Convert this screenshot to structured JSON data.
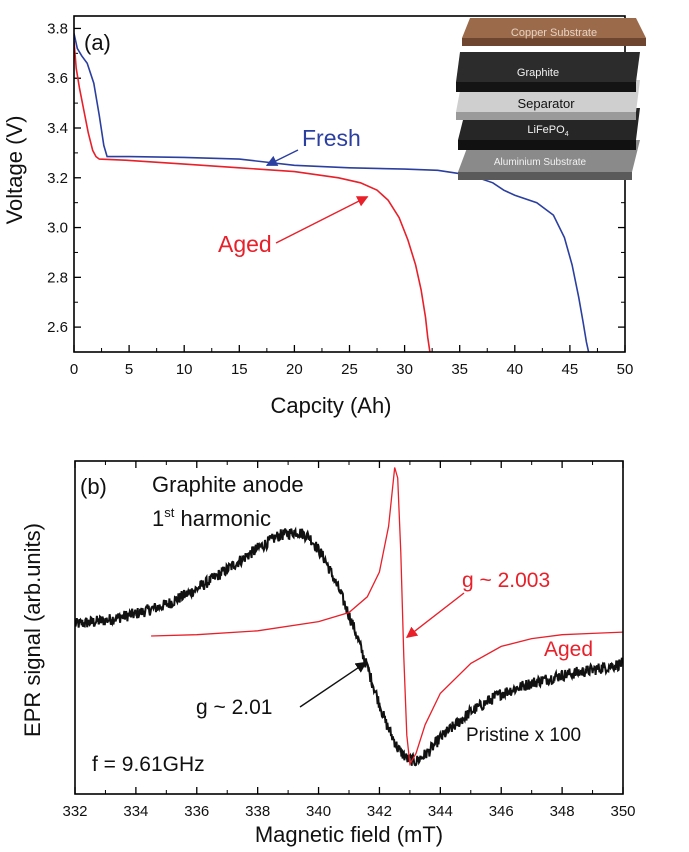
{
  "chart_data": [
    {
      "type": "line",
      "panel_label": "(a)",
      "xlabel": "Capcity (Ah)",
      "ylabel": "Voltage (V)",
      "xlim": [
        0,
        50
      ],
      "ylim": [
        2.5,
        3.85
      ],
      "xticks": [
        0,
        5,
        10,
        15,
        20,
        25,
        30,
        35,
        40,
        45,
        50
      ],
      "yticks": [
        2.6,
        2.8,
        3.0,
        3.2,
        3.4,
        3.6,
        3.8
      ],
      "series": [
        {
          "name": "Fresh",
          "color": "#2b3fa0",
          "x": [
            0,
            0.3,
            0.7,
            1.2,
            1.8,
            2.3,
            2.7,
            3.0,
            5,
            10,
            15,
            20,
            25,
            30,
            33,
            36,
            38,
            39,
            40,
            42,
            43.5,
            44.5,
            45.2,
            45.8,
            46.2,
            46.5,
            46.7
          ],
          "y": [
            3.78,
            3.72,
            3.69,
            3.66,
            3.58,
            3.45,
            3.33,
            3.285,
            3.285,
            3.282,
            3.275,
            3.25,
            3.24,
            3.235,
            3.23,
            3.21,
            3.18,
            3.15,
            3.13,
            3.1,
            3.05,
            2.96,
            2.85,
            2.72,
            2.62,
            2.54,
            2.5
          ]
        },
        {
          "name": "Aged",
          "color": "#e8202a",
          "x": [
            0,
            0.2,
            0.5,
            0.9,
            1.3,
            1.7,
            2.0,
            2.3,
            5,
            10,
            15,
            20,
            24,
            26,
            27.5,
            28.5,
            29.5,
            30.3,
            31,
            31.5,
            31.9,
            32.1,
            32.3
          ],
          "y": [
            3.75,
            3.64,
            3.56,
            3.47,
            3.38,
            3.31,
            3.285,
            3.275,
            3.27,
            3.255,
            3.24,
            3.225,
            3.2,
            3.18,
            3.15,
            3.11,
            3.04,
            2.95,
            2.85,
            2.75,
            2.64,
            2.56,
            2.5
          ]
        }
      ],
      "annotations": [
        {
          "text": "Fresh",
          "color": "#2b3fa0",
          "arrow_to": [
            17.5,
            3.25
          ]
        },
        {
          "text": "Aged",
          "color": "#e8202a",
          "arrow_to": [
            23,
            3.18
          ]
        }
      ],
      "inset_layers": [
        "Copper Substrate",
        "Graphite",
        "Separator",
        "LiFePO4",
        "Aluminium Substrate"
      ]
    },
    {
      "type": "line",
      "panel_label": "(b)",
      "title_line1": "Graphite anode",
      "title_line2_prefix": "1",
      "title_line2_sup": "st",
      "title_line2_suffix": " harmonic",
      "xlabel": "Magnetic field (mT)",
      "ylabel": "EPR signal (arb.units)",
      "xlim": [
        332,
        350
      ],
      "ylim": [
        -1.25,
        1.3
      ],
      "xticks": [
        332,
        334,
        336,
        338,
        340,
        342,
        344,
        346,
        348,
        350
      ],
      "series": [
        {
          "name": "Aged",
          "color": "#e8202a",
          "x": [
            334.5,
            336,
            338,
            340,
            341,
            341.6,
            342,
            342.3,
            342.5,
            342.6,
            342.7,
            342.8,
            342.9,
            343.0,
            343.2,
            343.5,
            344,
            345,
            346,
            347,
            348,
            349,
            350
          ],
          "y": [
            -0.04,
            -0.03,
            0.0,
            0.07,
            0.14,
            0.26,
            0.45,
            0.8,
            1.25,
            1.17,
            0.6,
            -0.2,
            -0.8,
            -1.02,
            -0.94,
            -0.72,
            -0.48,
            -0.25,
            -0.12,
            -0.06,
            -0.03,
            -0.02,
            -0.01
          ]
        },
        {
          "name": "Pristine x 100",
          "color": "#111111",
          "x": [
            332,
            333,
            334,
            335,
            336,
            337,
            338,
            338.7,
            339.3,
            339.7,
            340.2,
            340.7,
            341.2,
            341.7,
            342.2,
            342.6,
            342.9,
            343.2,
            343.6,
            344,
            345,
            346,
            347,
            348,
            349,
            350
          ],
          "y": [
            0.05,
            0.08,
            0.13,
            0.2,
            0.32,
            0.47,
            0.63,
            0.73,
            0.76,
            0.72,
            0.55,
            0.3,
            0.0,
            -0.35,
            -0.7,
            -0.9,
            -0.98,
            -1.0,
            -0.93,
            -0.82,
            -0.62,
            -0.48,
            -0.4,
            -0.34,
            -0.3,
            -0.25
          ]
        }
      ],
      "annotations": [
        {
          "text": "g ~ 2.003",
          "color": "#e8202a",
          "arrow_to": [
            342.9,
            -0.05
          ]
        },
        {
          "text": "g ~ 2.01",
          "color": "#111111",
          "arrow_to": [
            341.1,
            -0.12
          ]
        },
        {
          "text": "Aged",
          "color": "#e8202a"
        },
        {
          "text": "Pristine x 100",
          "color": "#111111"
        },
        {
          "text": "f = 9.61GHz",
          "color": "#111111"
        }
      ]
    }
  ]
}
